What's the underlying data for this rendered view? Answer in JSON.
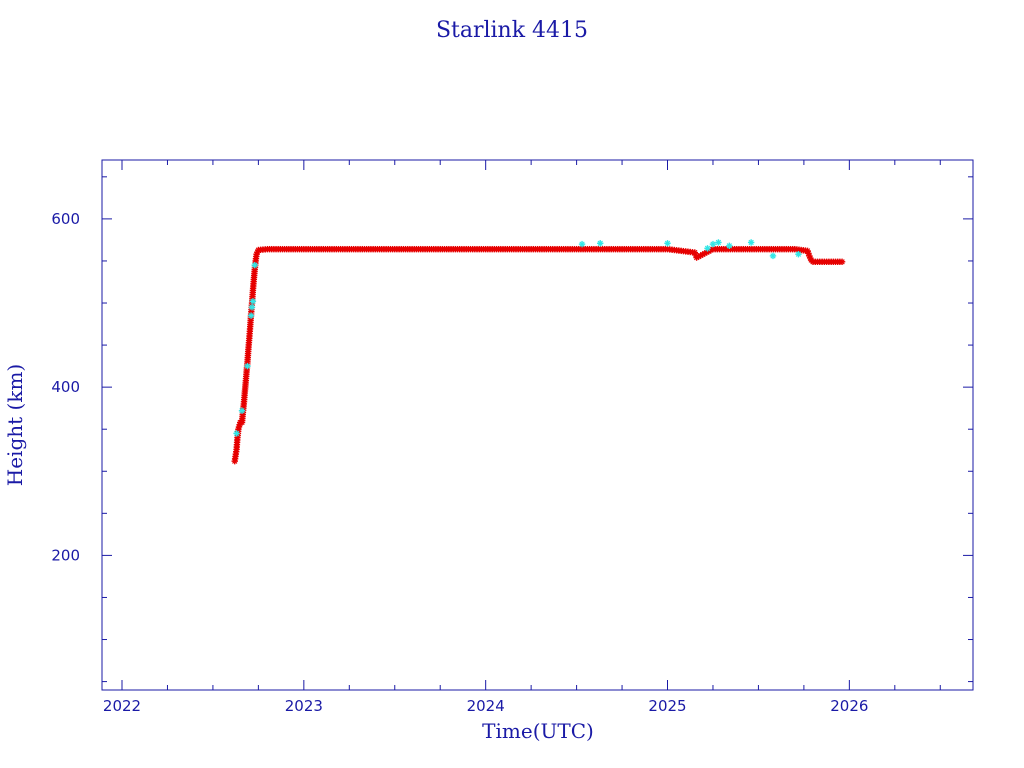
{
  "colors": {
    "axis": "#1a1aa6",
    "series_main": "#e60000",
    "series_alt": "#33e6e6",
    "series_dark": "#333333",
    "background": "#ffffff"
  },
  "chart_data": {
    "type": "scatter",
    "title": "Starlink 4415",
    "xlabel": "Time(UTC)",
    "ylabel": "Height (km)",
    "xlim": [
      2021.89,
      2026.68
    ],
    "ylim": [
      40,
      670
    ],
    "grid": false,
    "legend": "none",
    "x_ticks": [
      {
        "value": 2022,
        "label": "2022"
      },
      {
        "value": 2023,
        "label": "2023"
      },
      {
        "value": 2024,
        "label": "2024"
      },
      {
        "value": 2025,
        "label": "2025"
      },
      {
        "value": 2026,
        "label": "2026"
      }
    ],
    "y_ticks": [
      {
        "value": 200,
        "label": "200"
      },
      {
        "value": 400,
        "label": "400"
      },
      {
        "value": 600,
        "label": "600"
      }
    ],
    "series": [
      {
        "color_key": "series_main",
        "marker": "asterisk",
        "points": [
          [
            2022.62,
            312
          ],
          [
            2022.63,
            326
          ],
          [
            2022.635,
            340
          ],
          [
            2022.64,
            350
          ],
          [
            2022.65,
            358
          ],
          [
            2022.66,
            358
          ],
          [
            2022.665,
            370
          ],
          [
            2022.67,
            380
          ],
          [
            2022.675,
            393
          ],
          [
            2022.68,
            405
          ],
          [
            2022.685,
            418
          ],
          [
            2022.69,
            430
          ],
          [
            2022.695,
            445
          ],
          [
            2022.7,
            458
          ],
          [
            2022.705,
            472
          ],
          [
            2022.71,
            487
          ],
          [
            2022.715,
            500
          ],
          [
            2022.72,
            515
          ],
          [
            2022.725,
            528
          ],
          [
            2022.73,
            540
          ],
          [
            2022.735,
            550
          ],
          [
            2022.74,
            558
          ],
          [
            2022.75,
            563
          ],
          [
            2022.8,
            564
          ],
          [
            2023.0,
            564
          ],
          [
            2023.25,
            564
          ],
          [
            2023.5,
            564
          ],
          [
            2023.75,
            564
          ],
          [
            2024.0,
            564
          ],
          [
            2024.25,
            564
          ],
          [
            2024.5,
            564
          ],
          [
            2024.75,
            564
          ],
          [
            2025.0,
            564
          ],
          [
            2025.15,
            560
          ],
          [
            2025.16,
            554
          ],
          [
            2025.25,
            564
          ],
          [
            2025.5,
            564
          ],
          [
            2025.7,
            564
          ],
          [
            2025.77,
            562
          ],
          [
            2025.78,
            556
          ],
          [
            2025.79,
            551
          ],
          [
            2025.8,
            549
          ],
          [
            2025.85,
            549
          ],
          [
            2025.9,
            549
          ],
          [
            2025.96,
            549
          ]
        ]
      },
      {
        "color_key": "series_alt",
        "marker": "asterisk",
        "points": [
          [
            2022.63,
            345
          ],
          [
            2022.66,
            372
          ],
          [
            2022.69,
            425
          ],
          [
            2022.71,
            485
          ],
          [
            2022.715,
            495
          ],
          [
            2022.72,
            502
          ],
          [
            2022.73,
            545
          ],
          [
            2024.53,
            570
          ],
          [
            2024.63,
            571
          ],
          [
            2025.0,
            571
          ],
          [
            2025.22,
            565
          ],
          [
            2025.25,
            570
          ],
          [
            2025.28,
            572
          ],
          [
            2025.34,
            568
          ],
          [
            2025.46,
            572
          ],
          [
            2025.58,
            556
          ],
          [
            2025.72,
            558
          ]
        ]
      }
    ]
  }
}
